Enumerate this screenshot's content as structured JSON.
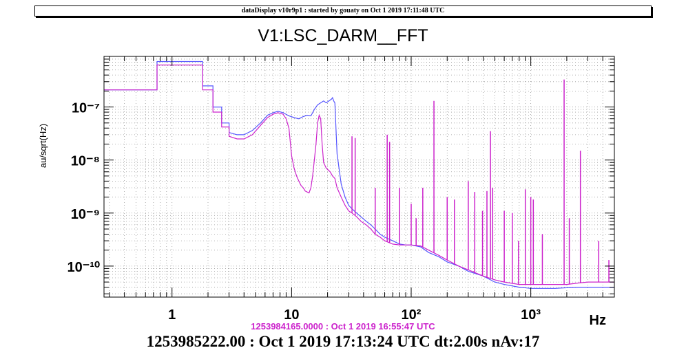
{
  "header": {
    "text": "dataDisplay v10r9p1 : started by gouaty on Oct  1 2019 17:11:48 UTC"
  },
  "reference_label": "1253984165.0000 : Oct  1 2019 16:55:47 UTC",
  "footer_label": "1253985222.00 : Oct  1 2019 17:13:24 UTC dt:2.00s nAv:17",
  "chart_data": {
    "type": "line",
    "title": "V1:LSC_DARM__FFT",
    "xlabel": "Hz",
    "ylabel": "au/sqrt(Hz)",
    "x_scale": "log",
    "y_scale": "log",
    "xlim": [
      0.27,
      5000
    ],
    "ylim": [
      2.6e-11,
      9e-07
    ],
    "grid": true,
    "x_ticks": [
      {
        "value": 1,
        "label": "1"
      },
      {
        "value": 10,
        "label": "10"
      },
      {
        "value": 100,
        "label": "10²"
      },
      {
        "value": 1000,
        "label": "10³"
      }
    ],
    "y_ticks": [
      {
        "value": 1e-10,
        "label": "10⁻¹⁰"
      },
      {
        "value": 1e-09,
        "label": "10⁻⁹"
      },
      {
        "value": 1e-08,
        "label": "10⁻⁸"
      },
      {
        "value": 1e-07,
        "label": "10⁻⁷"
      }
    ],
    "series": [
      {
        "color": "#5555ff",
        "x": [
          0.27,
          0.75,
          0.75,
          1.8,
          1.8,
          2.2,
          2.2,
          2.6,
          2.6,
          3.0,
          3.0,
          3.5,
          4.0,
          4.7,
          5.5,
          6.3,
          7.0,
          7.7,
          8.5,
          9.5,
          10.5,
          11.5,
          12.5,
          13.5,
          14.5,
          15.5,
          16.5,
          17.5,
          18.5,
          19.5,
          20.5,
          21.5,
          22.0,
          22.5,
          23.0,
          24,
          26,
          28,
          30,
          32,
          35,
          38,
          42,
          46,
          50,
          55,
          60,
          70,
          80,
          90,
          100,
          120,
          140,
          170,
          200,
          250,
          300,
          400,
          500,
          600,
          800,
          1000,
          1300,
          1600,
          2000,
          2500,
          3000,
          4000,
          5000
        ],
        "y": [
          2.1e-07,
          2.1e-07,
          7.2e-07,
          7.2e-07,
          2.5e-07,
          2.5e-07,
          1e-07,
          1e-07,
          5e-08,
          5e-08,
          3.3e-08,
          3e-08,
          3e-08,
          3.6e-08,
          5e-08,
          7e-08,
          7.8e-08,
          8.3e-08,
          7.8e-08,
          6.8e-08,
          6.3e-08,
          6e-08,
          6.6e-08,
          7e-08,
          6.8e-08,
          9e-08,
          1.1e-07,
          1.2e-07,
          1.3e-07,
          1.2e-07,
          1.3e-07,
          1.4e-07,
          1.5e-07,
          1.3e-07,
          1.2e-07,
          1.3e-08,
          3.5e-09,
          2e-09,
          1.4e-09,
          1.2e-09,
          1e-09,
          8.5e-10,
          7e-10,
          6e-10,
          5e-10,
          4e-10,
          3.5e-10,
          3e-10,
          2.6e-10,
          2.5e-10,
          2.5e-10,
          2.3e-10,
          1.8e-10,
          1.5e-10,
          1.2e-10,
          1e-10,
          8e-11,
          6.5e-11,
          5e-11,
          4.5e-11,
          4e-11,
          3.8e-11,
          3.8e-11,
          3.8e-11,
          3.9e-11,
          4e-11,
          4e-11,
          4e-11,
          4e-11
        ]
      },
      {
        "color": "#cc22cc",
        "x": [
          0.27,
          0.75,
          0.75,
          1.8,
          1.8,
          2.2,
          2.2,
          2.6,
          2.6,
          3.0,
          3.0,
          3.5,
          4.0,
          4.7,
          5.5,
          6.3,
          7.0,
          7.7,
          8.5,
          9.0,
          9.5,
          10.0,
          10.5,
          11.0,
          11.5,
          12.0,
          12.5,
          13.0,
          14.0,
          14.5,
          15.0,
          15.5,
          16.0,
          16.5,
          17.0,
          17.5,
          18.0,
          18.5,
          19.5,
          21.0,
          22.0,
          23.0,
          24,
          26,
          28,
          30,
          32,
          35,
          38,
          42,
          46,
          50,
          55,
          60,
          70,
          80,
          90,
          100,
          120,
          140,
          170,
          200,
          250,
          300,
          400,
          500,
          600,
          800,
          1000,
          1300,
          1600,
          2000,
          2500,
          3000,
          4000,
          5000
        ],
        "y": [
          2.1e-07,
          2.1e-07,
          6.2e-07,
          6.2e-07,
          2.1e-07,
          2.1e-07,
          8e-08,
          8e-08,
          4.2e-08,
          4.2e-08,
          2.8e-08,
          2.5e-08,
          2.5e-08,
          3e-08,
          4.5e-08,
          6.3e-08,
          7.3e-08,
          7.8e-08,
          7.3e-08,
          6e-08,
          4e-08,
          1.2e-08,
          7e-09,
          5e-09,
          4e-09,
          3.3e-09,
          3e-09,
          2.6e-09,
          2.4e-09,
          3e-09,
          5e-09,
          1e-08,
          2e-08,
          5e-08,
          7e-08,
          6e-08,
          2e-08,
          9e-09,
          7e-09,
          6e-09,
          5e-09,
          4.5e-09,
          3e-09,
          2e-09,
          1.4e-09,
          1.1e-09,
          1e-09,
          8.5e-10,
          7e-10,
          6e-10,
          5e-10,
          4e-10,
          3.5e-10,
          3e-10,
          2.6e-10,
          2.5e-10,
          2.5e-10,
          2.5e-10,
          2.4e-10,
          2e-10,
          1.6e-10,
          1.3e-10,
          1e-10,
          8.5e-11,
          6.5e-11,
          5.5e-11,
          5e-11,
          4.5e-11,
          4.5e-11,
          4.5e-11,
          4.5e-11,
          4.5e-11,
          4.8e-11,
          5e-11,
          5e-11,
          5e-11
        ],
        "peaks": [
          {
            "x": 32,
            "y": 2.8e-08
          },
          {
            "x": 34,
            "y": 2.6e-08
          },
          {
            "x": 50,
            "y": 3e-09
          },
          {
            "x": 63,
            "y": 3e-08
          },
          {
            "x": 66,
            "y": 2.2e-08
          },
          {
            "x": 80,
            "y": 3e-09
          },
          {
            "x": 100,
            "y": 1.5e-09
          },
          {
            "x": 110,
            "y": 8e-10
          },
          {
            "x": 125,
            "y": 3e-09
          },
          {
            "x": 155,
            "y": 1.3e-07
          },
          {
            "x": 200,
            "y": 2e-09
          },
          {
            "x": 230,
            "y": 1.8e-09
          },
          {
            "x": 300,
            "y": 4e-09
          },
          {
            "x": 340,
            "y": 2.5e-09
          },
          {
            "x": 395,
            "y": 1.1e-09
          },
          {
            "x": 430,
            "y": 2.6e-09
          },
          {
            "x": 460,
            "y": 3.5e-08
          },
          {
            "x": 480,
            "y": 3e-09
          },
          {
            "x": 600,
            "y": 1.1e-09
          },
          {
            "x": 700,
            "y": 1e-09
          },
          {
            "x": 790,
            "y": 3e-10
          },
          {
            "x": 900,
            "y": 2.8e-09
          },
          {
            "x": 1000,
            "y": 2e-09
          },
          {
            "x": 1050,
            "y": 1.8e-09
          },
          {
            "x": 1250,
            "y": 4e-10
          },
          {
            "x": 1900,
            "y": 3.3e-07
          },
          {
            "x": 2100,
            "y": 8e-10
          },
          {
            "x": 2600,
            "y": 1.5e-08
          },
          {
            "x": 3700,
            "y": 3e-10
          },
          {
            "x": 4500,
            "y": 1.3e-10
          }
        ]
      }
    ]
  }
}
